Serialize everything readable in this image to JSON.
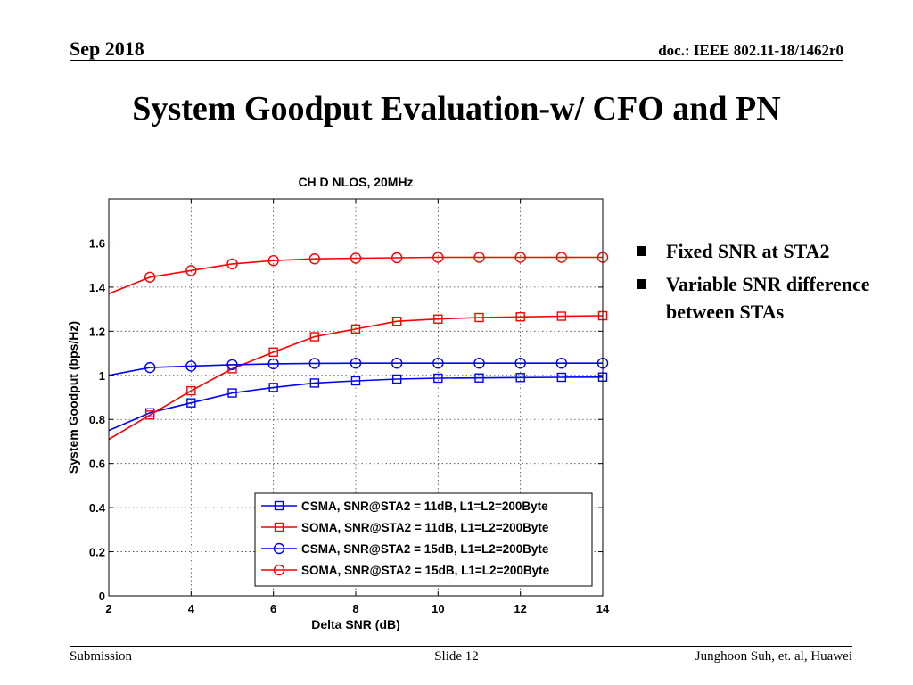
{
  "header": {
    "date": "Sep 2018",
    "doc": "doc.: IEEE 802.11-18/1462r0"
  },
  "slide_title": "System Goodput Evaluation-w/ CFO and PN",
  "bullets": [
    "Fixed SNR at STA2",
    "Variable SNR difference between STAs"
  ],
  "footer": {
    "left": "Submission",
    "center": "Slide 12",
    "right": "Junghoon Suh, et. al, Huawei"
  },
  "chart_data": {
    "type": "line",
    "title": "CH D NLOS, 20MHz",
    "xlabel": "Delta SNR (dB)",
    "ylabel": "System Goodput (bps/Hz)",
    "xlim": [
      2,
      14
    ],
    "ylim": [
      0,
      1.8
    ],
    "xticks": [
      2,
      4,
      6,
      8,
      10,
      12,
      14
    ],
    "xtick_labels": [
      "2",
      "4",
      "6",
      "8",
      "10",
      "12",
      "14"
    ],
    "yticks": [
      0,
      0.2,
      0.4,
      0.6,
      0.8,
      1.0,
      1.2,
      1.4,
      1.6
    ],
    "ytick_labels": [
      "0",
      "0.2",
      "0.4",
      "0.6",
      "0.8",
      "1",
      "1.2",
      "1.4",
      "1.6"
    ],
    "grid": true,
    "legend_position": "bottom-right",
    "x": [
      2,
      3,
      4,
      5,
      6,
      7,
      8,
      9,
      10,
      11,
      12,
      13,
      14
    ],
    "series": [
      {
        "name": "CSMA, SNR@STA2 = 11dB, L1=L2=200Byte",
        "color": "#0000ff",
        "marker": "square",
        "marked_from_index": 1,
        "values": [
          0.75,
          0.83,
          0.875,
          0.92,
          0.945,
          0.965,
          0.975,
          0.983,
          0.987,
          0.988,
          0.99,
          0.991,
          0.992
        ]
      },
      {
        "name": "SOMA, SNR@STA2 = 11dB, L1=L2=200Byte",
        "color": "#ff0000",
        "marker": "square",
        "marked_from_index": 1,
        "values": [
          0.71,
          0.82,
          0.93,
          1.03,
          1.105,
          1.175,
          1.21,
          1.245,
          1.255,
          1.262,
          1.265,
          1.268,
          1.27
        ]
      },
      {
        "name": "CSMA, SNR@STA2 = 15dB, L1=L2=200Byte",
        "color": "#0000ff",
        "marker": "circle",
        "marked_from_index": 1,
        "values": [
          1.0,
          1.035,
          1.042,
          1.048,
          1.052,
          1.054,
          1.055,
          1.055,
          1.055,
          1.055,
          1.055,
          1.055,
          1.055
        ]
      },
      {
        "name": "SOMA, SNR@STA2 = 15dB, L1=L2=200Byte",
        "color": "#ff0000",
        "marker": "circle",
        "marked_from_index": 1,
        "values": [
          1.37,
          1.445,
          1.475,
          1.505,
          1.52,
          1.528,
          1.531,
          1.533,
          1.535,
          1.535,
          1.535,
          1.535,
          1.535
        ]
      }
    ]
  }
}
